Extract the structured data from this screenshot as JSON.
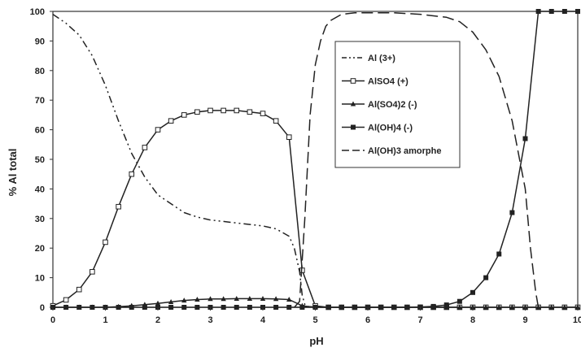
{
  "chart_data": {
    "type": "line",
    "title": "",
    "xlabel": "pH",
    "ylabel": "% Al total",
    "xlim": [
      0,
      10
    ],
    "ylim": [
      0,
      100
    ],
    "xticks": [
      "0",
      "1",
      "2",
      "3",
      "4",
      "5",
      "6",
      "7",
      "8",
      "9",
      "10"
    ],
    "yticks": [
      "0",
      "10",
      "20",
      "30",
      "40",
      "50",
      "60",
      "70",
      "80",
      "90",
      "100"
    ],
    "grid": false,
    "legend_position": "top-right",
    "series": [
      {
        "name": "Al (3+)",
        "color": "#222222",
        "dash": "dash-dot-dot",
        "marker": "none",
        "x": [
          0,
          0.25,
          0.5,
          0.75,
          1.0,
          1.25,
          1.5,
          1.75,
          2.0,
          2.25,
          2.5,
          2.75,
          3.0,
          3.25,
          3.5,
          3.75,
          4.0,
          4.25,
          4.5,
          4.6,
          4.7,
          4.75,
          4.8,
          4.85,
          5.0
        ],
        "y": [
          99,
          96,
          92,
          85,
          75,
          63,
          52,
          44,
          38,
          35,
          32,
          30.5,
          29.5,
          29,
          28.5,
          28,
          27.5,
          26.5,
          24,
          20,
          12,
          4,
          1,
          0.3,
          0
        ]
      },
      {
        "name": "AlSO4 (+)",
        "color": "#222222",
        "dash": "solid",
        "marker": "square-open",
        "x": [
          0,
          0.25,
          0.5,
          0.75,
          1.0,
          1.25,
          1.5,
          1.75,
          2.0,
          2.25,
          2.5,
          2.75,
          3.0,
          3.25,
          3.5,
          3.75,
          4.0,
          4.25,
          4.5,
          4.75,
          5.0,
          5.25,
          5.5,
          5.75,
          6.0,
          6.25,
          6.5,
          6.75,
          7.0,
          7.25,
          7.5,
          7.75,
          8.0,
          8.25,
          8.5,
          8.75,
          9.0,
          9.25,
          9.5,
          9.75,
          10.0
        ],
        "y": [
          0.5,
          2.5,
          6,
          12,
          22,
          34,
          45,
          54,
          60,
          63,
          65,
          66,
          66.5,
          66.5,
          66.5,
          66,
          65.5,
          63,
          57.5,
          12.5,
          0.5,
          0,
          0,
          0,
          0,
          0,
          0,
          0,
          0,
          0,
          0,
          0,
          0,
          0,
          0,
          0,
          0,
          0,
          0,
          0,
          0
        ]
      },
      {
        "name": "Al(SO4)2 (-)",
        "color": "#222222",
        "dash": "solid",
        "marker": "triangle",
        "x": [
          0,
          0.25,
          0.5,
          0.75,
          1.0,
          1.25,
          1.5,
          1.75,
          2.0,
          2.25,
          2.5,
          2.75,
          3.0,
          3.25,
          3.5,
          3.75,
          4.0,
          4.25,
          4.5,
          4.75,
          5.0,
          5.25,
          5.5,
          5.75,
          6.0,
          6.25,
          6.5,
          6.75,
          7.0,
          7.25,
          7.5,
          7.75,
          8.0,
          8.25,
          8.5,
          8.75,
          9.0,
          9.25,
          9.5,
          9.75,
          10.0
        ],
        "y": [
          0,
          0,
          0,
          0,
          0,
          0.2,
          0.5,
          0.9,
          1.3,
          1.8,
          2.3,
          2.6,
          2.8,
          2.8,
          2.9,
          2.9,
          2.9,
          2.8,
          2.6,
          0.5,
          0,
          0,
          0,
          0,
          0,
          0,
          0,
          0,
          0,
          0,
          0,
          0,
          0,
          0,
          0,
          0,
          0,
          0,
          0,
          0,
          0
        ]
      },
      {
        "name": "Al(OH)4 (-)",
        "color": "#222222",
        "dash": "solid",
        "marker": "square-filled",
        "x": [
          0,
          0.25,
          0.5,
          0.75,
          1.0,
          1.25,
          1.5,
          1.75,
          2.0,
          2.25,
          2.5,
          2.75,
          3.0,
          3.25,
          3.5,
          3.75,
          4.0,
          4.25,
          4.5,
          4.75,
          5.0,
          5.25,
          5.5,
          5.75,
          6.0,
          6.25,
          6.5,
          6.75,
          7.0,
          7.25,
          7.5,
          7.75,
          8.0,
          8.25,
          8.5,
          8.75,
          9.0,
          9.25,
          9.5,
          9.75,
          10.0
        ],
        "y": [
          0,
          0,
          0,
          0,
          0,
          0,
          0,
          0,
          0,
          0,
          0,
          0,
          0,
          0,
          0,
          0,
          0,
          0,
          0,
          0,
          0,
          0,
          0,
          0,
          0,
          0,
          0,
          0,
          0.1,
          0.3,
          0.8,
          2,
          5,
          10,
          18,
          32,
          57,
          100,
          100,
          100,
          100
        ]
      },
      {
        "name": "Al(OH)3 amorphe",
        "color": "#222222",
        "dash": "long-dash",
        "marker": "none",
        "x": [
          4.6,
          4.7,
          4.8,
          4.9,
          5.0,
          5.1,
          5.2,
          5.3,
          5.5,
          5.75,
          6.0,
          6.5,
          7.0,
          7.5,
          7.75,
          8.0,
          8.25,
          8.5,
          8.75,
          9.0,
          9.1,
          9.2,
          9.25
        ],
        "y": [
          0,
          2,
          30,
          65,
          82,
          90,
          95,
          97,
          99,
          99.5,
          99.5,
          99.5,
          99,
          98,
          96.5,
          93,
          87,
          78,
          63,
          40,
          20,
          5,
          0
        ]
      }
    ]
  }
}
